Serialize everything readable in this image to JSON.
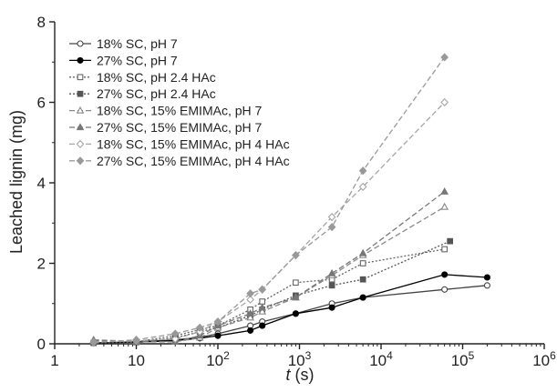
{
  "chart_data": {
    "type": "line",
    "title": "",
    "xlabel": {
      "italic": "t",
      "rest": " (s)"
    },
    "ylabel": "Leached lignin (mg)",
    "x_scale": "log",
    "xlim": [
      1,
      1000000
    ],
    "ylim": [
      0,
      8
    ],
    "grid": false,
    "legend_position": "top-left",
    "x_ticks": [
      {
        "value": 1,
        "base": "1",
        "exp": ""
      },
      {
        "value": 10,
        "base": "10",
        "exp": ""
      },
      {
        "value": 100,
        "base": "10",
        "exp": "2"
      },
      {
        "value": 1000,
        "base": "10",
        "exp": "3"
      },
      {
        "value": 10000,
        "base": "10",
        "exp": "4"
      },
      {
        "value": 100000,
        "base": "10",
        "exp": "5"
      },
      {
        "value": 1000000,
        "base": "10",
        "exp": "6"
      }
    ],
    "y_ticks": [
      "0",
      "2",
      "4",
      "6",
      "8"
    ],
    "series": [
      {
        "name": "18% SC, pH 7",
        "color": "#444444",
        "dash": "",
        "marker": "circle-open",
        "points": [
          [
            3,
            0.02
          ],
          [
            10,
            0.05
          ],
          [
            30,
            0.1
          ],
          [
            60,
            0.16
          ],
          [
            100,
            0.25
          ],
          [
            250,
            0.45
          ],
          [
            350,
            0.55
          ],
          [
            900,
            0.75
          ],
          [
            2500,
            1.0
          ],
          [
            6000,
            1.15
          ],
          [
            60000,
            1.35
          ],
          [
            200000,
            1.45
          ]
        ]
      },
      {
        "name": "27% SC, pH 7",
        "color": "#000000",
        "dash": "",
        "marker": "circle-filled",
        "points": [
          [
            3,
            0.02
          ],
          [
            10,
            0.04
          ],
          [
            30,
            0.08
          ],
          [
            60,
            0.14
          ],
          [
            100,
            0.2
          ],
          [
            250,
            0.33
          ],
          [
            350,
            0.45
          ],
          [
            900,
            0.75
          ],
          [
            2500,
            0.9
          ],
          [
            6000,
            1.15
          ],
          [
            60000,
            1.72
          ],
          [
            200000,
            1.65
          ]
        ]
      },
      {
        "name": "18% SC, pH 2.4 HAc",
        "color": "#666666",
        "dash": "2,2",
        "marker": "square-open",
        "points": [
          [
            3,
            0.02
          ],
          [
            10,
            0.05
          ],
          [
            30,
            0.2
          ],
          [
            60,
            0.35
          ],
          [
            100,
            0.45
          ],
          [
            250,
            0.85
          ],
          [
            350,
            1.05
          ],
          [
            900,
            1.52
          ],
          [
            2500,
            1.6
          ],
          [
            6000,
            2.0
          ],
          [
            60000,
            2.35
          ]
        ]
      },
      {
        "name": "27% SC, pH 2.4 HAc",
        "color": "#555555",
        "dash": "2,2",
        "marker": "square-filled",
        "points": [
          [
            3,
            0.02
          ],
          [
            10,
            0.04
          ],
          [
            30,
            0.15
          ],
          [
            60,
            0.3
          ],
          [
            100,
            0.4
          ],
          [
            250,
            0.7
          ],
          [
            350,
            0.85
          ],
          [
            900,
            1.2
          ],
          [
            2500,
            1.45
          ],
          [
            6000,
            1.6
          ],
          [
            70000,
            2.55
          ]
        ]
      },
      {
        "name": "18% SC, 15% EMIMAc, pH 7",
        "color": "#888888",
        "dash": "6,3",
        "marker": "triangle-open",
        "points": [
          [
            3,
            0.1
          ],
          [
            10,
            0.06
          ],
          [
            30,
            0.05
          ],
          [
            60,
            0.15
          ],
          [
            100,
            0.4
          ],
          [
            250,
            0.65
          ],
          [
            350,
            0.8
          ],
          [
            900,
            1.15
          ],
          [
            2500,
            1.7
          ],
          [
            6000,
            2.2
          ],
          [
            60000,
            3.4
          ]
        ]
      },
      {
        "name": "27% SC, 15% EMIMAc, pH 7",
        "color": "#777777",
        "dash": "6,3",
        "marker": "triangle-filled",
        "points": [
          [
            3,
            0.08
          ],
          [
            10,
            0.05
          ],
          [
            30,
            0.05
          ],
          [
            60,
            0.2
          ],
          [
            100,
            0.45
          ],
          [
            250,
            0.75
          ],
          [
            350,
            0.9
          ],
          [
            900,
            1.15
          ],
          [
            2500,
            1.75
          ],
          [
            6000,
            2.25
          ],
          [
            60000,
            3.78
          ]
        ]
      },
      {
        "name": "18% SC, 15% EMIMAc, pH 4 HAc",
        "color": "#a5a5a5",
        "dash": "6,3",
        "marker": "diamond-open",
        "points": [
          [
            3,
            0.04
          ],
          [
            10,
            0.08
          ],
          [
            30,
            0.12
          ],
          [
            60,
            0.3
          ],
          [
            100,
            0.55
          ],
          [
            250,
            1.1
          ],
          [
            350,
            1.35
          ],
          [
            900,
            2.2
          ],
          [
            2500,
            3.15
          ],
          [
            6000,
            3.9
          ],
          [
            60000,
            6.0
          ]
        ]
      },
      {
        "name": "27% SC, 15% EMIMAc, pH 4 HAc",
        "color": "#999999",
        "dash": "6,3",
        "marker": "diamond-filled",
        "points": [
          [
            3,
            0.03
          ],
          [
            10,
            0.1
          ],
          [
            30,
            0.25
          ],
          [
            60,
            0.4
          ],
          [
            100,
            0.55
          ],
          [
            250,
            1.25
          ],
          [
            350,
            1.35
          ],
          [
            900,
            2.2
          ],
          [
            2500,
            2.9
          ],
          [
            6000,
            4.3
          ],
          [
            60000,
            7.12
          ]
        ]
      }
    ]
  }
}
